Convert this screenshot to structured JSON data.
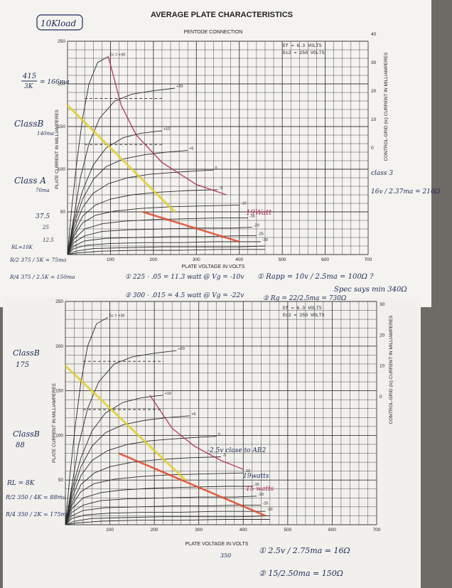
{
  "header": {
    "title": "AVERAGE PLATE CHARACTERISTICS",
    "subtitle": "PENTODE CONNECTION",
    "load_tag": "10Kload"
  },
  "conditions": {
    "ef": "Ef = 6.3 VOLTS",
    "ec2": "Ec2 = 250 VOLTS"
  },
  "colors": {
    "paper": "#f4f3ef",
    "grid": "#3a3a3a",
    "curve": "#2b2b2b",
    "yellow": "#e2cf2a",
    "red": "#e0482e",
    "magenta": "#b0245a",
    "ink": "#1c2a5a"
  },
  "chart_data": [
    {
      "type": "line",
      "title": "AVERAGE PLATE CHARACTERISTICS",
      "subtitle": "PENTODE CONNECTION",
      "xlabel": "PLATE VOLTAGE IN VOLTS",
      "ylabel": "PLATE CURRENT IN MILLIAMPERES",
      "ylabel2": "CONTROL-GRID (Ic) CURRENT IN MILLIAMPERES",
      "xlim": [
        0,
        700
      ],
      "ylim": [
        0,
        250
      ],
      "xticks": [
        "100",
        "200",
        "300",
        "400",
        "500",
        "600",
        "700"
      ],
      "yticks": [
        "50",
        "100",
        "150",
        "200",
        "250"
      ],
      "y2ticks": [
        "40",
        "30",
        "20",
        "10",
        "0"
      ],
      "grid": true,
      "curve_labels": [
        "Ec = +30",
        "+20",
        "+10",
        "+5",
        "0",
        "-5",
        "-10",
        "-15",
        "-20",
        "-25",
        "-30"
      ],
      "series": [
        {
          "name": "+30",
          "x": [
            0,
            10,
            22,
            35,
            50,
            70,
            95
          ],
          "y": [
            0,
            55,
            110,
            160,
            200,
            225,
            232
          ]
        },
        {
          "name": "+20",
          "x": [
            0,
            15,
            30,
            50,
            75,
            110,
            150,
            200,
            250
          ],
          "y": [
            0,
            45,
            90,
            130,
            160,
            180,
            188,
            192,
            195
          ]
        },
        {
          "name": "+10",
          "x": [
            0,
            15,
            35,
            60,
            90,
            130,
            170,
            200,
            220
          ],
          "y": [
            0,
            40,
            75,
            105,
            125,
            137,
            142,
            144,
            145
          ]
        },
        {
          "name": "+5",
          "x": [
            0,
            15,
            35,
            60,
            90,
            130,
            180,
            230,
            280
          ],
          "y": [
            0,
            35,
            65,
            88,
            103,
            112,
            117,
            120,
            122
          ]
        },
        {
          "name": "0",
          "x": [
            0,
            15,
            35,
            60,
            95,
            140,
            190,
            240,
            300,
            340
          ],
          "y": [
            0,
            30,
            55,
            72,
            83,
            90,
            94,
            96,
            98,
            99
          ]
        },
        {
          "name": "-5",
          "x": [
            0,
            15,
            35,
            65,
            100,
            150,
            210,
            280,
            350
          ],
          "y": [
            0,
            25,
            45,
            58,
            65,
            70,
            73,
            75,
            76
          ]
        },
        {
          "name": "-10",
          "x": [
            0,
            15,
            35,
            65,
            110,
            170,
            240,
            320,
            400
          ],
          "y": [
            0,
            22,
            37,
            46,
            51,
            54,
            56,
            57,
            58
          ]
        },
        {
          "name": "-15",
          "x": [
            0,
            15,
            40,
            80,
            130,
            200,
            280,
            360,
            420
          ],
          "y": [
            0,
            18,
            30,
            36,
            39,
            41,
            42,
            43,
            43
          ]
        },
        {
          "name": "-20",
          "x": [
            0,
            15,
            40,
            80,
            140,
            220,
            300,
            380,
            430
          ],
          "y": [
            0,
            14,
            22,
            27,
            29,
            30,
            31,
            31,
            32
          ]
        },
        {
          "name": "-25",
          "x": [
            0,
            15,
            40,
            90,
            160,
            240,
            320,
            400,
            440
          ],
          "y": [
            0,
            10,
            16,
            19,
            20,
            21,
            21,
            22,
            22
          ]
        },
        {
          "name": "-30",
          "x": [
            0,
            15,
            45,
            100,
            180,
            260,
            340,
            410,
            450
          ],
          "y": [
            0,
            7,
            11,
            13,
            14,
            14,
            15,
            15,
            15
          ]
        },
        {
          "name": "-35",
          "x": [
            0,
            20,
            60,
            130,
            220,
            320,
            400,
            460
          ],
          "y": [
            0,
            4,
            7,
            8,
            9,
            9,
            9,
            10
          ]
        },
        {
          "name": "-40",
          "x": [
            0,
            25,
            80,
            160,
            260,
            360,
            460
          ],
          "y": [
            0,
            2,
            4,
            5,
            5,
            6,
            6
          ]
        }
      ],
      "annotations": {
        "load_lines": [
          {
            "color": "yellow",
            "x": [
              0,
              250
            ],
            "y": [
              175,
              50
            ]
          },
          {
            "color": "red",
            "x": [
              175,
              400
            ],
            "y": [
              50,
              15
            ]
          },
          {
            "color": "magenta",
            "x": [
              95,
              125,
              160,
              220,
              300,
              370
            ],
            "y": [
              232,
              175,
              140,
              108,
              82,
              70
            ]
          }
        ]
      }
    },
    {
      "type": "line",
      "xlabel": "PLATE VOLTAGE IN VOLTS",
      "ylabel": "PLATE CURRENT IN MILLIAMPERES",
      "ylabel2": "CONTROL-GRID (Ic) CURRENT IN MILLIAMPERES",
      "xlim": [
        0,
        700
      ],
      "ylim": [
        0,
        250
      ],
      "xticks": [
        "100",
        "200",
        "300",
        "400",
        "500",
        "600",
        "700"
      ],
      "yticks": [
        "50",
        "100",
        "150",
        "200",
        "250"
      ],
      "y2ticks": [
        "30",
        "20",
        "10",
        "0"
      ],
      "grid": true,
      "curve_labels": [
        "Ec = +30",
        "+20",
        "+10",
        "+5",
        "0",
        "-5",
        "-10",
        "-15",
        "-20",
        "-25",
        "-30"
      ],
      "series": [
        {
          "name": "+30",
          "x": [
            0,
            10,
            22,
            35,
            50,
            70,
            95
          ],
          "y": [
            0,
            55,
            110,
            160,
            200,
            225,
            232
          ]
        },
        {
          "name": "+20",
          "x": [
            0,
            15,
            30,
            50,
            75,
            110,
            150,
            200,
            250
          ],
          "y": [
            0,
            45,
            90,
            130,
            160,
            180,
            188,
            192,
            195
          ]
        },
        {
          "name": "+10",
          "x": [
            0,
            15,
            35,
            60,
            90,
            130,
            170,
            200,
            220
          ],
          "y": [
            0,
            40,
            75,
            105,
            125,
            137,
            142,
            144,
            145
          ]
        },
        {
          "name": "+5",
          "x": [
            0,
            15,
            35,
            60,
            90,
            130,
            180,
            230,
            280
          ],
          "y": [
            0,
            35,
            65,
            88,
            103,
            112,
            117,
            120,
            122
          ]
        },
        {
          "name": "0",
          "x": [
            0,
            15,
            35,
            60,
            95,
            140,
            190,
            240,
            300,
            340
          ],
          "y": [
            0,
            30,
            55,
            72,
            83,
            90,
            94,
            96,
            98,
            99
          ]
        },
        {
          "name": "-5",
          "x": [
            0,
            15,
            35,
            65,
            100,
            150,
            210,
            280,
            350
          ],
          "y": [
            0,
            25,
            45,
            58,
            65,
            70,
            73,
            75,
            76
          ]
        },
        {
          "name": "-10",
          "x": [
            0,
            15,
            35,
            65,
            110,
            170,
            240,
            320,
            400
          ],
          "y": [
            0,
            22,
            37,
            46,
            51,
            54,
            56,
            57,
            58
          ]
        },
        {
          "name": "-15",
          "x": [
            0,
            15,
            40,
            80,
            130,
            200,
            280,
            360,
            420
          ],
          "y": [
            0,
            18,
            30,
            36,
            39,
            41,
            42,
            43,
            43
          ]
        },
        {
          "name": "-20",
          "x": [
            0,
            15,
            40,
            80,
            140,
            220,
            300,
            380,
            430
          ],
          "y": [
            0,
            14,
            22,
            27,
            29,
            30,
            31,
            31,
            32
          ]
        },
        {
          "name": "-25",
          "x": [
            0,
            15,
            40,
            90,
            160,
            240,
            320,
            400,
            440
          ],
          "y": [
            0,
            10,
            16,
            19,
            20,
            21,
            21,
            22,
            22
          ]
        },
        {
          "name": "-30",
          "x": [
            0,
            15,
            45,
            100,
            180,
            260,
            340,
            410,
            450
          ],
          "y": [
            0,
            7,
            11,
            13,
            14,
            14,
            15,
            15,
            15
          ]
        },
        {
          "name": "-35",
          "x": [
            0,
            20,
            60,
            130,
            220,
            320,
            400,
            460
          ],
          "y": [
            0,
            4,
            7,
            8,
            9,
            9,
            9,
            10
          ]
        },
        {
          "name": "-40",
          "x": [
            0,
            25,
            80,
            160,
            260,
            360,
            460
          ],
          "y": [
            0,
            2,
            4,
            5,
            5,
            6,
            6
          ]
        }
      ],
      "annotations": {
        "load_lines": [
          {
            "color": "yellow",
            "x": [
              0,
              270
            ],
            "y": [
              178,
              50
            ]
          },
          {
            "color": "red",
            "x": [
              120,
              450
            ],
            "y": [
              80,
              10
            ]
          },
          {
            "color": "magenta",
            "x": [
              190,
              240,
              290,
              350,
              400
            ],
            "y": [
              145,
              108,
              88,
              72,
              62
            ]
          }
        ]
      }
    }
  ],
  "notes_top": {
    "frac_num": "415",
    "frac_den": "3K",
    "frac_val": "= 166ma",
    "classB": "ClassB",
    "classB_sub": "140ma",
    "classA": "Class A",
    "classA_sub": "70ma",
    "v37": "37.5",
    "v25": "25",
    "v125": "12.5",
    "rl": "RL=10K",
    "r2": "R/2 375 / 5K = 75ma",
    "r4": "R/4 375 / 2.5K = 150ma",
    "op1": "① 225 · .05 = 11.3 watt @ Vg = -10v",
    "op2": "② 300 · .015 = 4.5 watt @ Vg = -22v",
    "rapp": "① Rapp = 10v / 2.5ma = 100Ω ?",
    "rg2": "② Rg = 22/2.5ma = 730Ω",
    "spec": "Spec says min 340Ω",
    "clas3": "class 3",
    "clas3_eq": "16v / 2.37ma = 216Ω",
    "watt": "19Watt"
  },
  "notes_bottom": {
    "classB": "ClassB",
    "classB_v": "175",
    "classB2": "ClassB",
    "classB2_v": "88",
    "rl": "RL = 8K",
    "r2": "R/2 350 / 4K = 88ma",
    "r4": "R/4 350 / 2K = 175ma",
    "ab2": "-2.5v close to AB2",
    "w19": "19watts",
    "w15": "15 watts",
    "v350": "350",
    "eq1": "① 2.5v / 2.75ma = 16Ω",
    "eq2": "② 15/2.50ma = 150Ω"
  }
}
